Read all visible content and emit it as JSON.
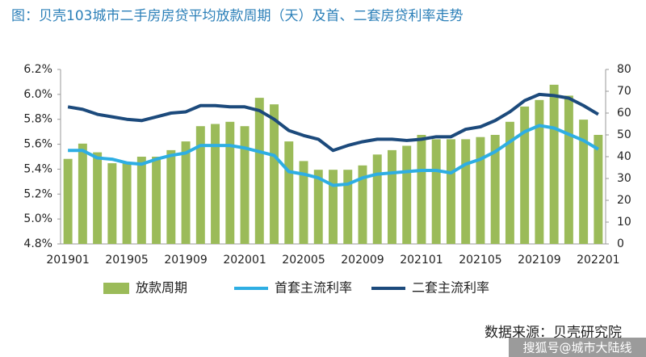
{
  "chart_data": {
    "type": "combo",
    "title": "图：贝壳103城市二手房房贷平均放款周期（天）及首、二套房贷利率走势",
    "source": "数据来源：贝壳研究院",
    "watermark": "搜狐号@城市大陆线",
    "categories": [
      "201901",
      null,
      null,
      null,
      "201905",
      null,
      null,
      null,
      "201909",
      null,
      null,
      null,
      "202001",
      null,
      null,
      null,
      "202005",
      null,
      null,
      null,
      "202009",
      null,
      null,
      null,
      "202101",
      null,
      null,
      null,
      "202105",
      null,
      null,
      null,
      "202109",
      null,
      null,
      null,
      "202201"
    ],
    "series": [
      {
        "name": "放款周期",
        "type": "bar",
        "axis": "y2",
        "color": "#9bbb59",
        "values": [
          39,
          46,
          42,
          37,
          37,
          40,
          40,
          43,
          47,
          54,
          55,
          56,
          54,
          67,
          64,
          47,
          38,
          34,
          34,
          34,
          36,
          41,
          43,
          45,
          50,
          48,
          48,
          48,
          49,
          50,
          56,
          63,
          66,
          73,
          68,
          57,
          50
        ]
      },
      {
        "name": "首套主流利率",
        "type": "line",
        "color": "#2eaee3",
        "values": [
          5.55,
          5.55,
          5.49,
          5.48,
          5.45,
          5.44,
          5.48,
          5.51,
          5.53,
          5.59,
          5.59,
          5.59,
          5.57,
          5.54,
          5.51,
          5.38,
          5.36,
          5.33,
          5.27,
          5.28,
          5.33,
          5.36,
          5.37,
          5.38,
          5.39,
          5.39,
          5.37,
          5.44,
          5.48,
          5.54,
          5.62,
          5.7,
          5.75,
          5.73,
          5.68,
          5.63,
          5.56
        ]
      },
      {
        "name": "二套主流利率",
        "type": "line",
        "color": "#1c4a7c",
        "values": [
          5.9,
          5.88,
          5.84,
          5.82,
          5.8,
          5.79,
          5.82,
          5.85,
          5.86,
          5.91,
          5.91,
          5.9,
          5.9,
          5.87,
          5.8,
          5.71,
          5.67,
          5.64,
          5.55,
          5.59,
          5.62,
          5.64,
          5.64,
          5.63,
          5.64,
          5.66,
          5.66,
          5.72,
          5.74,
          5.79,
          5.86,
          5.95,
          6.0,
          5.99,
          5.97,
          5.91,
          5.84
        ]
      }
    ],
    "ylim": [
      4.8,
      6.2
    ],
    "yticks": [
      {
        "value": 4.8,
        "label": "4.8%"
      },
      {
        "value": 5.0,
        "label": "5.0%"
      },
      {
        "value": 5.2,
        "label": "5.2%"
      },
      {
        "value": 5.4,
        "label": "5.4%"
      },
      {
        "value": 5.6,
        "label": "5.6%"
      },
      {
        "value": 5.8,
        "label": "5.8%"
      },
      {
        "value": 6.0,
        "label": "6.0%"
      },
      {
        "value": 6.2,
        "label": "6.2%"
      }
    ],
    "y2lim": [
      0,
      80
    ],
    "y2ticks": [
      0,
      10,
      20,
      30,
      40,
      50,
      60,
      70,
      80
    ],
    "grid": false
  }
}
